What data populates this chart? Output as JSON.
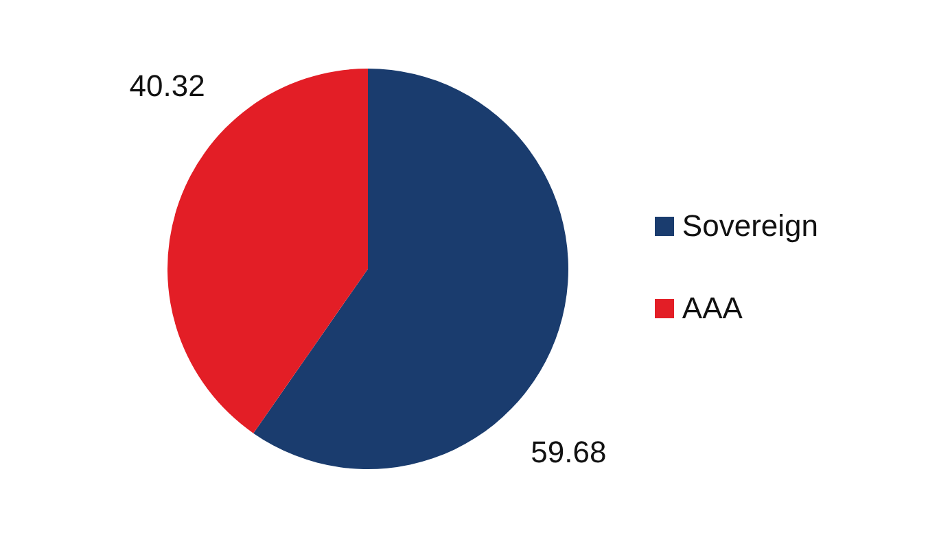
{
  "chart_data": {
    "type": "pie",
    "categories": [
      "Sovereign",
      "AAA"
    ],
    "values": [
      59.68,
      40.32
    ],
    "colors": [
      "#1a3c6e",
      "#e31e26"
    ],
    "data_labels": true,
    "legend": "right"
  }
}
